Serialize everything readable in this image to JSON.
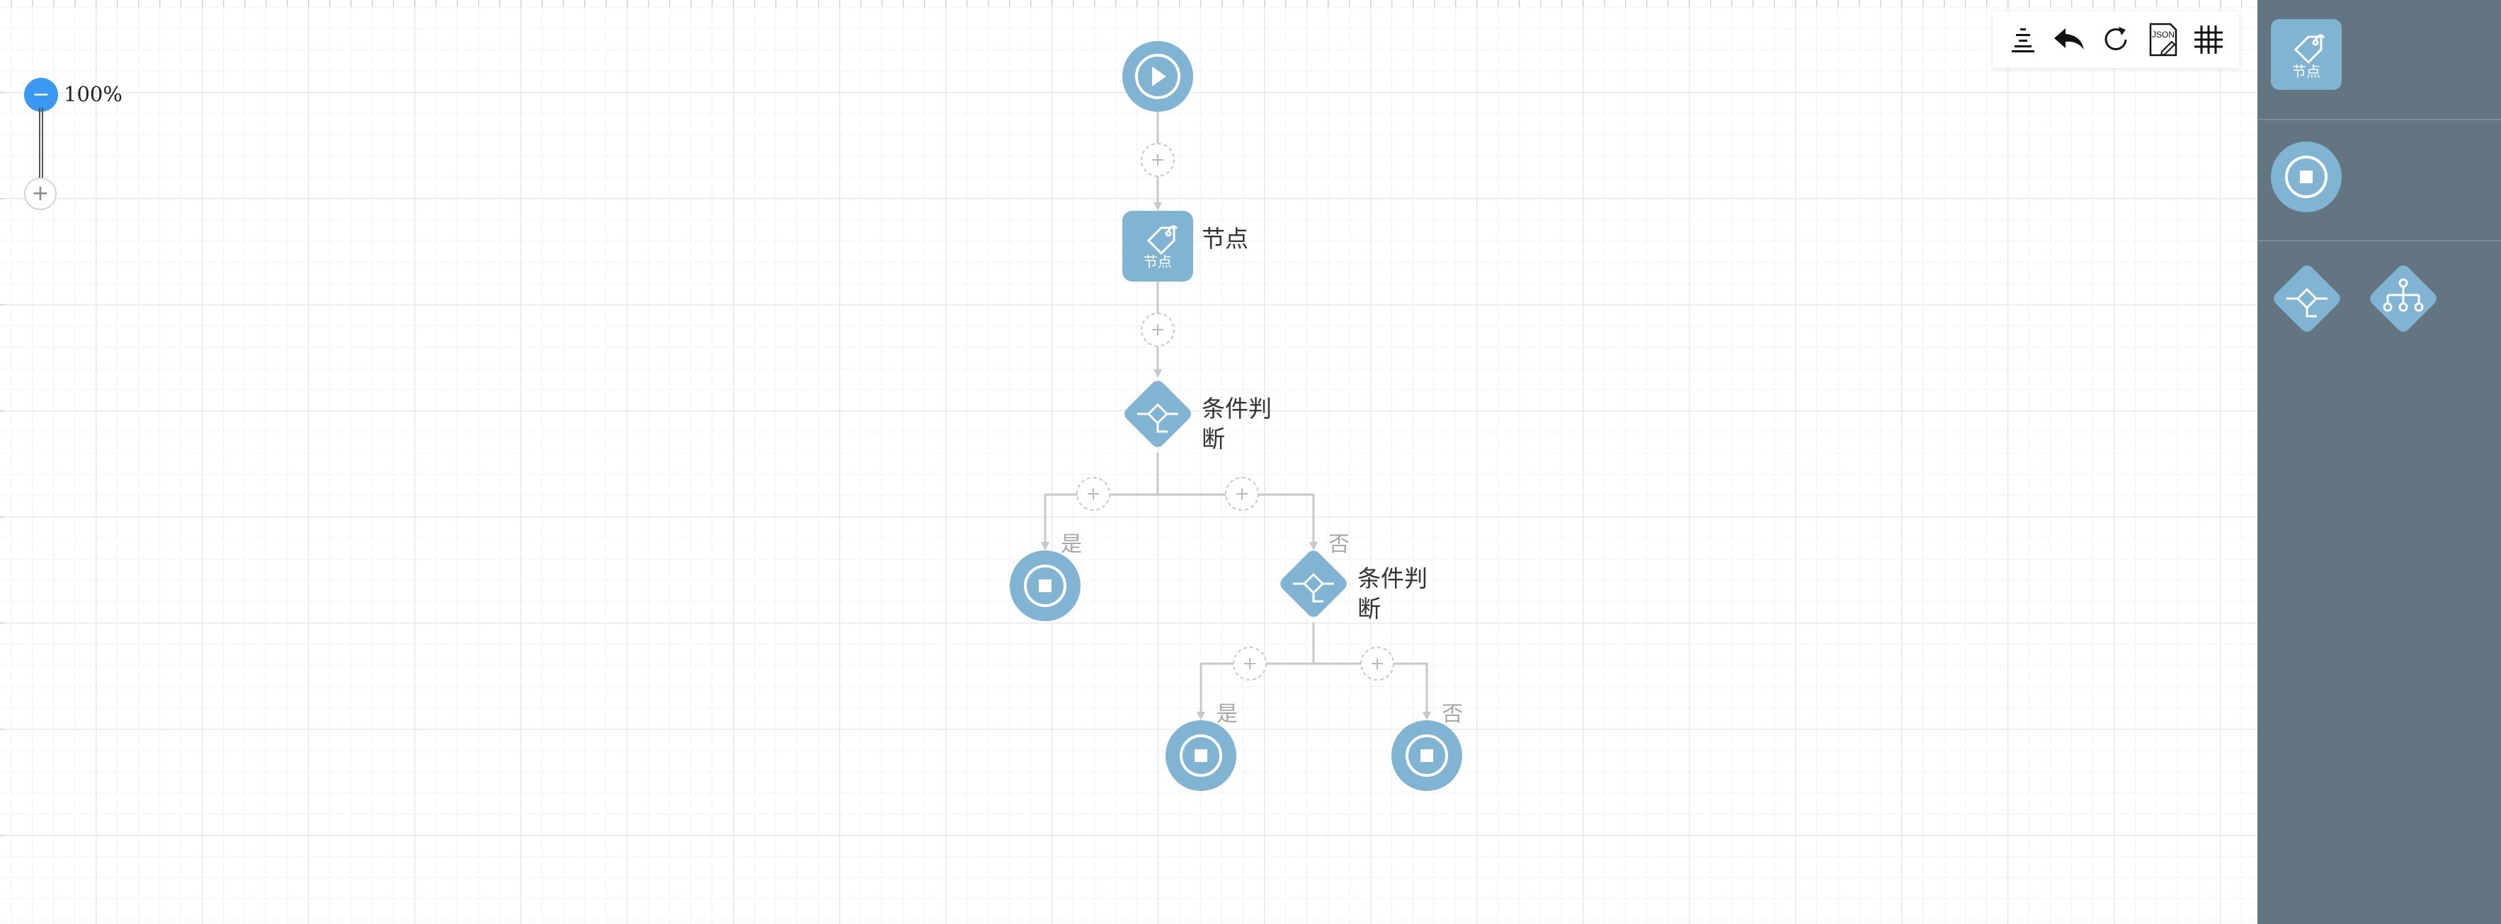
{
  "zoom": {
    "level": "100%",
    "minus_symbol": "−",
    "plus_symbol": "+"
  },
  "toolbar": {
    "buttons": [
      {
        "name": "align",
        "icon": "align-center-icon"
      },
      {
        "name": "undo",
        "icon": "undo-icon"
      },
      {
        "name": "redo",
        "icon": "redo-icon"
      },
      {
        "name": "json",
        "icon": "json-file-icon",
        "text": "JSON"
      },
      {
        "name": "grid",
        "icon": "grid-icon"
      }
    ]
  },
  "flow": {
    "task_node": {
      "icon_text": "节点",
      "label": "节点"
    },
    "condition_1": {
      "label_line1": "条件判",
      "label_line2": "断"
    },
    "condition_2": {
      "label_line1": "条件判",
      "label_line2": "断"
    },
    "branch_yes": "是",
    "branch_no": "否"
  },
  "panel": {
    "task_node_text": "节点",
    "items": [
      "task-node",
      "end-node",
      "condition-node",
      "parallel-node"
    ]
  },
  "colors": {
    "node_fill": "#81b3d2",
    "connector": "#c8c8c8",
    "panel_bg": "#647582",
    "zoom_active": "#3a98f0"
  }
}
